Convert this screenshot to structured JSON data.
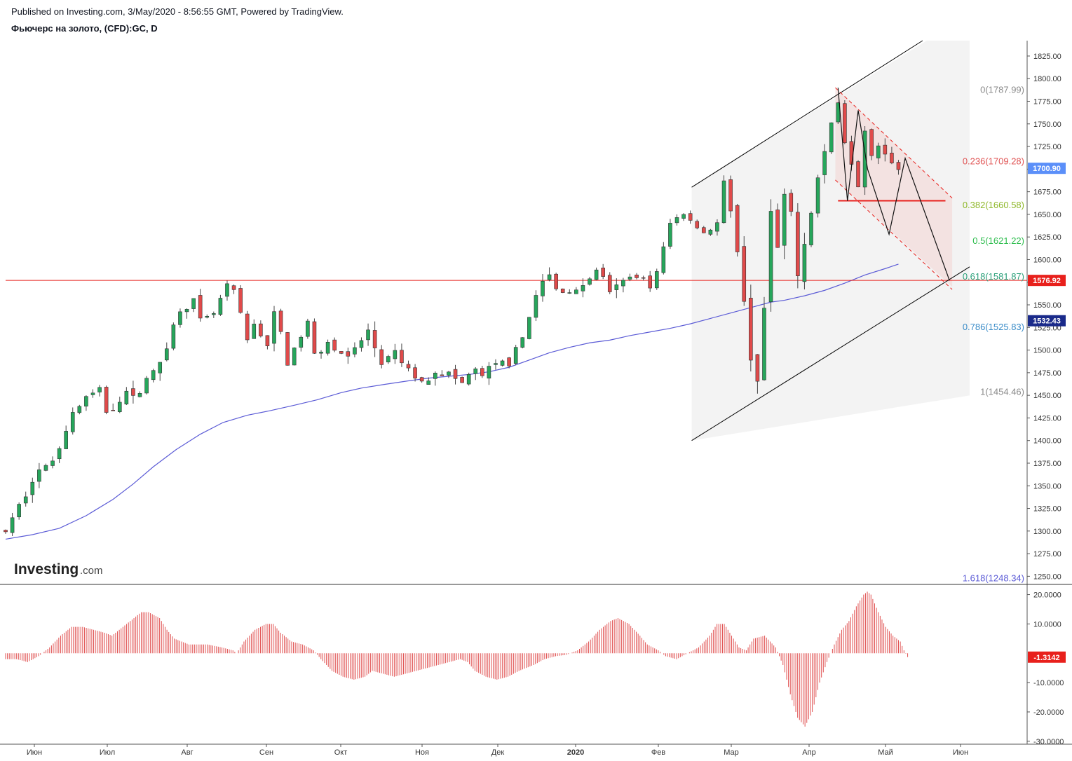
{
  "header": {
    "published": "Published on Investing.com, 3/May/2020 - 8:56:55 GMT, Powered by TradingView.",
    "title": "Фьючерс на золото, (CFD):GC, D"
  },
  "logo": {
    "main": "Investing",
    "suffix": ".com"
  },
  "colors": {
    "up": "#26a65b",
    "down": "#e04a4a",
    "ma": "#5b5bd6",
    "resistance": "#e8201c",
    "channel": "#000000",
    "histogram": "#e05050",
    "price_tag": "#5b8ff9"
  },
  "chart_data": {
    "type": "candlestick",
    "title": "Фьючерс на золото, (CFD):GC, D",
    "price_axis": {
      "ticks": [
        "1825.00",
        "1800.00",
        "1775.00",
        "1750.00",
        "1725.00",
        "1700.00",
        "1675.00",
        "1650.00",
        "1625.00",
        "1600.00",
        "1575.00",
        "1550.00",
        "1525.00",
        "1500.00",
        "1475.00",
        "1450.00",
        "1425.00",
        "1400.00",
        "1375.00",
        "1350.00",
        "1325.00",
        "1300.00",
        "1275.00",
        "1250.00"
      ],
      "ylim": [
        1241,
        1842
      ]
    },
    "time_axis": {
      "ticks": [
        "Июн",
        "Июл",
        "Авг",
        "Сен",
        "Окт",
        "Ноя",
        "Дек",
        "2020",
        "Фев",
        "Мар",
        "Апр",
        "Май",
        "Июн"
      ]
    },
    "price_path": [
      [
        1305,
        2
      ],
      [
        1320,
        8
      ],
      [
        1365,
        22
      ],
      [
        1372,
        33
      ],
      [
        1430,
        50
      ],
      [
        1448,
        60
      ],
      [
        1455,
        70
      ],
      [
        1432,
        75
      ],
      [
        1440,
        82
      ],
      [
        1455,
        90
      ],
      [
        1445,
        95
      ],
      [
        1470,
        105
      ],
      [
        1475,
        112
      ],
      [
        1545,
        130
      ],
      [
        1555,
        140
      ],
      [
        1530,
        145
      ],
      [
        1540,
        155
      ],
      [
        1570,
        165
      ],
      [
        1565,
        170
      ],
      [
        1510,
        180
      ],
      [
        1530,
        185
      ],
      [
        1505,
        195
      ],
      [
        1545,
        198
      ],
      [
        1520,
        205
      ],
      [
        1485,
        210
      ],
      [
        1510,
        218
      ],
      [
        1530,
        225
      ],
      [
        1495,
        230
      ],
      [
        1510,
        240
      ],
      [
        1490,
        255
      ],
      [
        1505,
        262
      ],
      [
        1520,
        270
      ],
      [
        1485,
        280
      ],
      [
        1495,
        290
      ],
      [
        1478,
        300
      ],
      [
        1463,
        310
      ],
      [
        1478,
        320
      ],
      [
        1473,
        330
      ],
      [
        1463,
        340
      ],
      [
        1478,
        348
      ],
      [
        1472,
        355
      ],
      [
        1483,
        365
      ],
      [
        1488,
        375
      ],
      [
        1503,
        383
      ],
      [
        1540,
        390
      ],
      [
        1575,
        400
      ],
      [
        1582,
        405
      ],
      [
        1567,
        410
      ],
      [
        1565,
        425
      ],
      [
        1580,
        435
      ],
      [
        1592,
        443
      ],
      [
        1562,
        450
      ],
      [
        1575,
        460
      ],
      [
        1585,
        470
      ],
      [
        1572,
        480
      ],
      [
        1585,
        485
      ],
      [
        1640,
        495
      ],
      [
        1652,
        505
      ],
      [
        1630,
        520
      ],
      [
        1640,
        530
      ],
      [
        1683,
        535
      ],
      [
        1650,
        540
      ],
      [
        1618,
        545
      ],
      [
        1520,
        552
      ],
      [
        1488,
        556
      ],
      [
        1470,
        560
      ],
      [
        1542,
        565
      ],
      [
        1645,
        570
      ],
      [
        1612,
        575
      ],
      [
        1660,
        580
      ],
      [
        1650,
        585
      ],
      [
        1592,
        590
      ],
      [
        1640,
        598
      ],
      [
        1690,
        605
      ],
      [
        1750,
        615
      ],
      [
        1775,
        620
      ],
      [
        1744,
        622
      ],
      [
        1710,
        630
      ],
      [
        1685,
        635
      ],
      [
        1745,
        640
      ],
      [
        1720,
        645
      ],
      [
        1728,
        650
      ],
      [
        1720,
        655
      ],
      [
        1700,
        665
      ]
    ],
    "last_price": "1700.90",
    "moving_average": {
      "tag": "1532.43",
      "points": [
        [
          1291,
          0
        ],
        [
          1296,
          20
        ],
        [
          1303,
          40
        ],
        [
          1317,
          60
        ],
        [
          1335,
          80
        ],
        [
          1352,
          95
        ],
        [
          1371,
          110
        ],
        [
          1390,
          127
        ],
        [
          1407,
          145
        ],
        [
          1420,
          162
        ],
        [
          1428,
          180
        ],
        [
          1433,
          197
        ],
        [
          1439,
          215
        ],
        [
          1445,
          232
        ],
        [
          1453,
          250
        ],
        [
          1458,
          265
        ],
        [
          1462,
          282
        ],
        [
          1466,
          300
        ],
        [
          1469,
          315
        ],
        [
          1471,
          330
        ],
        [
          1473,
          345
        ],
        [
          1476,
          360
        ],
        [
          1481,
          375
        ],
        [
          1489,
          390
        ],
        [
          1497,
          405
        ],
        [
          1503,
          420
        ],
        [
          1508,
          435
        ],
        [
          1511,
          450
        ],
        [
          1516,
          465
        ],
        [
          1520,
          480
        ],
        [
          1524,
          495
        ],
        [
          1529,
          510
        ],
        [
          1535,
          525
        ],
        [
          1541,
          540
        ],
        [
          1547,
          555
        ],
        [
          1553,
          570
        ],
        [
          1555,
          580
        ],
        [
          1560,
          595
        ],
        [
          1566,
          610
        ],
        [
          1574,
          625
        ],
        [
          1583,
          640
        ],
        [
          1590,
          655
        ],
        [
          1595,
          665
        ]
      ]
    },
    "horizontal_level": {
      "value": 1577,
      "tag": "1576.92"
    },
    "fibonacci": [
      {
        "ratio": 0,
        "value": 1787.99,
        "label": "0(1787.99)",
        "color": "#8a8a8a"
      },
      {
        "ratio": 0.236,
        "value": 1709.28,
        "label": "0.236(1709.28)",
        "color": "#e05555"
      },
      {
        "ratio": 0.382,
        "value": 1660.58,
        "label": "0.382(1660.58)",
        "color": "#8fb82a"
      },
      {
        "ratio": 0.5,
        "value": 1621.22,
        "label": "0.5(1621.22)",
        "color": "#2ebd4e"
      },
      {
        "ratio": 0.618,
        "value": 1581.87,
        "label": "0.618(1581.87)",
        "color": "#2aa07a"
      },
      {
        "ratio": 0.786,
        "value": 1525.83,
        "label": "0.786(1525.83)",
        "color": "#3a8cc8"
      },
      {
        "ratio": 1,
        "value": 1454.46,
        "label": "1(1454.46)",
        "color": "#8a8a8a"
      },
      {
        "ratio": 1.618,
        "value": 1248.34,
        "label": "1.618(1248.34)",
        "color": "#5b5bd6"
      }
    ],
    "channel": {
      "upper": [
        [
          0,
          1680
        ],
        [
          680,
          1842
        ]
      ],
      "lower": [
        [
          0,
          1400
        ],
        [
          797,
          1592
        ]
      ]
    },
    "projection_path": [
      [
        1791,
        628
      ],
      [
        1662,
        642
      ],
      [
        1628,
        652
      ],
      [
        1714,
        667
      ],
      [
        1664,
        678
      ],
      [
        1587,
        695
      ]
    ],
    "oscillator": {
      "ticks": [
        "20.0000",
        "10.0000",
        "-10.0000",
        "-20.0000",
        "-30.0000"
      ],
      "ylim": [
        -31,
        23
      ],
      "last_value": "-1.3142",
      "values": [
        [
          -2,
          0
        ],
        [
          -2,
          6
        ],
        [
          -3,
          12
        ],
        [
          -1,
          18
        ],
        [
          2,
          24
        ],
        [
          6,
          30
        ],
        [
          9,
          36
        ],
        [
          9,
          42
        ],
        [
          8,
          48
        ],
        [
          7,
          54
        ],
        [
          6,
          58
        ],
        [
          8,
          62
        ],
        [
          11,
          68
        ],
        [
          14,
          74
        ],
        [
          14,
          78
        ],
        [
          12,
          84
        ],
        [
          8,
          88
        ],
        [
          5,
          92
        ],
        [
          3,
          100
        ],
        [
          3,
          110
        ],
        [
          2,
          118
        ],
        [
          1,
          124
        ],
        [
          0,
          126
        ],
        [
          4,
          130
        ],
        [
          8,
          136
        ],
        [
          10,
          142
        ],
        [
          10,
          146
        ],
        [
          7,
          150
        ],
        [
          4,
          156
        ],
        [
          3,
          162
        ],
        [
          1,
          168
        ],
        [
          -2,
          172
        ],
        [
          -6,
          178
        ],
        [
          -8,
          184
        ],
        [
          -9,
          190
        ],
        [
          -8,
          196
        ],
        [
          -6,
          200
        ],
        [
          -7,
          206
        ],
        [
          -8,
          212
        ],
        [
          -7,
          218
        ],
        [
          -6,
          224
        ],
        [
          -5,
          230
        ],
        [
          -4,
          236
        ],
        [
          -3,
          242
        ],
        [
          -2,
          248
        ],
        [
          -3,
          252
        ],
        [
          -6,
          256
        ],
        [
          -8,
          262
        ],
        [
          -9,
          268
        ],
        [
          -8,
          274
        ],
        [
          -6,
          280
        ],
        [
          -4,
          288
        ],
        [
          -2,
          294
        ],
        [
          -1,
          300
        ],
        [
          -0.5,
          306
        ],
        [
          1,
          312
        ],
        [
          4,
          318
        ],
        [
          8,
          324
        ],
        [
          11,
          330
        ],
        [
          12,
          334
        ],
        [
          10,
          340
        ],
        [
          6,
          346
        ],
        [
          3,
          350
        ],
        [
          1,
          356
        ],
        [
          -1,
          360
        ],
        [
          -2,
          366
        ],
        [
          0,
          372
        ],
        [
          2,
          378
        ],
        [
          6,
          384
        ],
        [
          10,
          388
        ],
        [
          10,
          392
        ],
        [
          6,
          396
        ],
        [
          2,
          400
        ],
        [
          1,
          404
        ],
        [
          5,
          408
        ],
        [
          6,
          414
        ],
        [
          2,
          420
        ],
        [
          -4,
          424
        ],
        [
          -14,
          428
        ],
        [
          -22,
          432
        ],
        [
          -25,
          436
        ],
        [
          -20,
          440
        ],
        [
          -10,
          444
        ],
        [
          -3,
          448
        ],
        [
          3,
          452
        ],
        [
          8,
          456
        ],
        [
          11,
          460
        ],
        [
          16,
          464
        ],
        [
          20,
          468
        ],
        [
          21,
          470
        ],
        [
          20,
          472
        ],
        [
          14,
          476
        ],
        [
          9,
          480
        ],
        [
          6,
          484
        ],
        [
          4,
          488
        ],
        [
          1,
          490
        ],
        [
          -1.3,
          492
        ]
      ]
    }
  }
}
